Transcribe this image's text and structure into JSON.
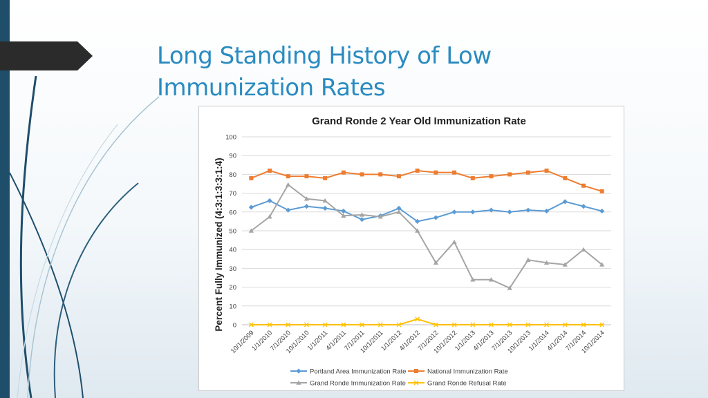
{
  "slide": {
    "title_line1": "Long Standing History of Low",
    "title_line2": "Immunization Rates"
  },
  "colors": {
    "accent": "#2a8bc0",
    "sidebar": "#1f4e6b",
    "portland": "#5b9bd5",
    "national": "#ed7d31",
    "grand_ronde": "#a5a5a5",
    "refusal": "#ffc000"
  },
  "chart_data": {
    "type": "line",
    "title": "Grand Ronde 2 Year Old Immunization Rate",
    "xlabel": "",
    "ylabel": "Percent Fully Immunized (4:3:1:3:3:1:4)",
    "ylim": [
      0,
      100
    ],
    "yticks": [
      0,
      10,
      20,
      30,
      40,
      50,
      60,
      70,
      80,
      90,
      100
    ],
    "grid": true,
    "legend_position": "bottom",
    "categories": [
      "10/1/2009",
      "1/1/2010",
      "7/1/2010",
      "10/1/2010",
      "1/1/2011",
      "4/1/2011",
      "7/1/2011",
      "10/1/2011",
      "1/1/2012",
      "4/1/2012",
      "7/1/2012",
      "10/1/2012",
      "1/1/2013",
      "4/1/2013",
      "7/1/2013",
      "10/1/2013",
      "1/1/2014",
      "4/1/2014",
      "7/1/2014",
      "10/1/2014"
    ],
    "series": [
      {
        "name": "Portland Area Immunization Rate",
        "color": "#5b9bd5",
        "marker": "diamond",
        "values": [
          62.5,
          66,
          61,
          63,
          62,
          60.5,
          56,
          58,
          62,
          55,
          57,
          60,
          60,
          61,
          60,
          61,
          60.5,
          65.5,
          63,
          60.5
        ]
      },
      {
        "name": "National Immunization Rate",
        "color": "#ed7d31",
        "marker": "square",
        "values": [
          78,
          82,
          79,
          79,
          78,
          81,
          80,
          80,
          79,
          82,
          81,
          81,
          78,
          79,
          80,
          81,
          82,
          78,
          74,
          71
        ]
      },
      {
        "name": "Grand Ronde Immunization Rate",
        "color": "#a5a5a5",
        "marker": "triangle",
        "values": [
          50,
          57.5,
          74.5,
          67,
          66,
          58,
          58.5,
          57.5,
          60,
          50,
          33,
          44,
          24,
          24,
          19.5,
          34.5,
          33,
          32,
          40,
          32
        ]
      },
      {
        "name": "Grand Ronde Refusal Rate",
        "color": "#ffc000",
        "marker": "x",
        "values": [
          0,
          0,
          0,
          0,
          0,
          0,
          0,
          0,
          0,
          3,
          0,
          0,
          0,
          0,
          0,
          0,
          0,
          0,
          0,
          0
        ]
      }
    ]
  }
}
